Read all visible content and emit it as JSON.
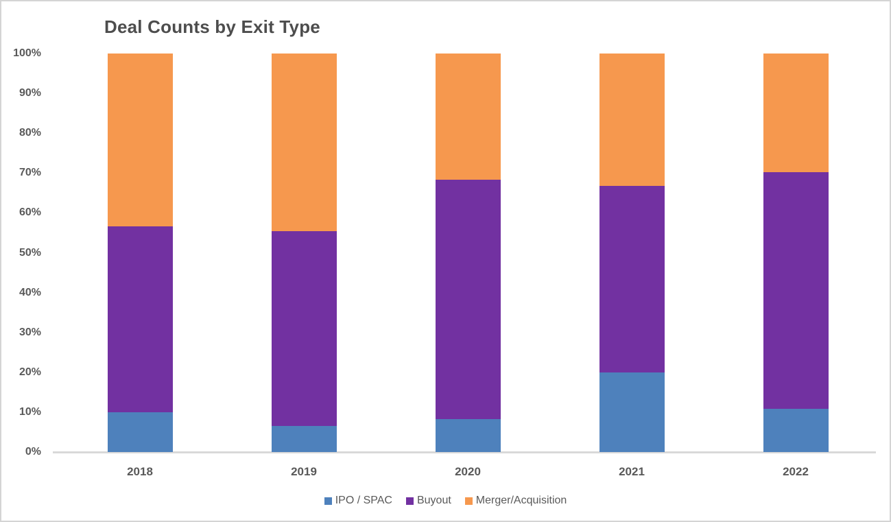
{
  "title": "Deal Counts by Exit Type",
  "colors": {
    "ipo_spac": "#4E81BC",
    "buyout": "#7231A1",
    "merger_acquisition": "#F6984E",
    "axis_line": "#D9D9D9",
    "text": "#595959",
    "title_text": "#4D4D4D",
    "border": "#D4D4D4",
    "background": "#FFFFFF"
  },
  "chart_data": {
    "type": "bar",
    "subtype": "100-percent-stacked-column",
    "title": "Deal Counts by Exit Type",
    "categories": [
      "2018",
      "2019",
      "2020",
      "2021",
      "2022"
    ],
    "series": [
      {
        "name": "IPO / SPAC",
        "color": "#4E81BC",
        "values": [
          10.0,
          6.6,
          8.3,
          20.0,
          10.8
        ]
      },
      {
        "name": "Buyout",
        "color": "#7231A1",
        "values": [
          46.7,
          48.8,
          60.0,
          46.7,
          59.4
        ]
      },
      {
        "name": "Merger/Acquisition",
        "color": "#F6984E",
        "values": [
          43.3,
          44.6,
          31.7,
          33.3,
          29.8
        ]
      }
    ],
    "value_unit": "%",
    "xlabel": "",
    "ylabel": "",
    "ylim": [
      0,
      100
    ],
    "ytick_step": 10,
    "ytick_labels": [
      "0%",
      "10%",
      "20%",
      "30%",
      "40%",
      "50%",
      "60%",
      "70%",
      "80%",
      "90%",
      "100%"
    ],
    "grid": false,
    "legend_position": "bottom",
    "stack_order_bottom_to_top": [
      "IPO / SPAC",
      "Buyout",
      "Merger/Acquisition"
    ]
  }
}
